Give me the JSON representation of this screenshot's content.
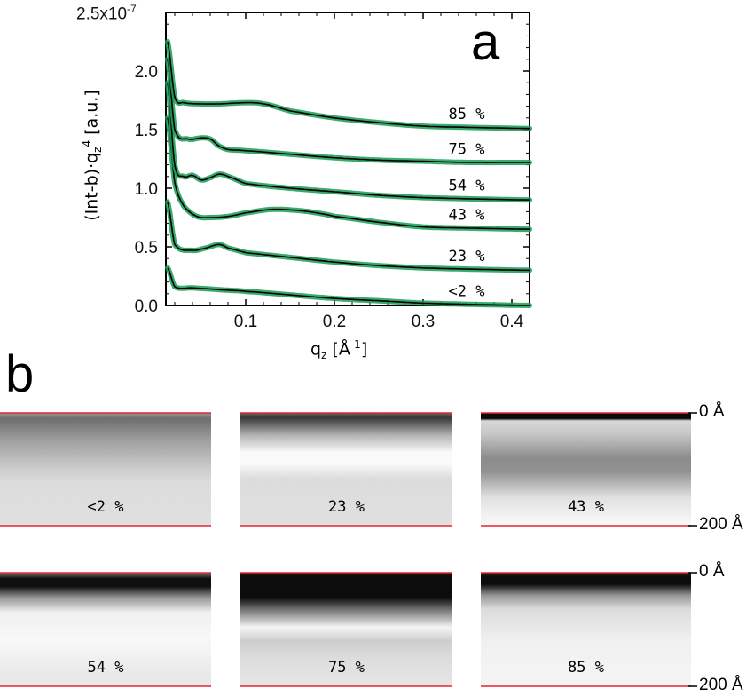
{
  "panel_a_label": "a",
  "panel_b_label": "b",
  "chart_data": {
    "type": "line",
    "xlabel": "q",
    "xlabel_sub": "z",
    "xlabel_unit": "[Å",
    "xlabel_unit_sup": "-1",
    "xlabel_unit_end": "]",
    "ylabel": "(Int-b)·q",
    "ylabel_sub": "z",
    "ylabel_sup": "4",
    "ylabel_unit": "[a.u.]",
    "xlim": [
      0.01,
      0.42
    ],
    "ylim": [
      0.0,
      2.5
    ],
    "y_scale_label": "2.5x10",
    "y_scale_exp": "-7",
    "xticks": [
      0.1,
      0.2,
      0.3,
      0.4
    ],
    "xtick_labels": [
      "0.1",
      "0.2",
      "0.3",
      "0.4"
    ],
    "yticks": [
      0.0,
      0.5,
      1.0,
      1.5,
      2.0
    ],
    "ytick_labels": [
      "0.0",
      "0.5",
      "1.0",
      "1.5",
      "2.0"
    ],
    "data_color": "#1a9a55",
    "fit_color": "#000000",
    "series": [
      {
        "name": "<2 %",
        "x": [
          0.012,
          0.02,
          0.04,
          0.06,
          0.08,
          0.1,
          0.15,
          0.2,
          0.25,
          0.3,
          0.35,
          0.42
        ],
        "y": [
          0.32,
          0.16,
          0.15,
          0.14,
          0.13,
          0.12,
          0.09,
          0.06,
          0.04,
          0.02,
          0.01,
          0.0
        ]
      },
      {
        "name": "23 %",
        "x": [
          0.012,
          0.02,
          0.04,
          0.055,
          0.07,
          0.08,
          0.1,
          0.15,
          0.2,
          0.25,
          0.3,
          0.35,
          0.42
        ],
        "y": [
          0.88,
          0.52,
          0.47,
          0.49,
          0.52,
          0.49,
          0.45,
          0.41,
          0.37,
          0.34,
          0.32,
          0.31,
          0.3
        ]
      },
      {
        "name": "43 %",
        "x": [
          0.012,
          0.02,
          0.03,
          0.045,
          0.06,
          0.08,
          0.1,
          0.13,
          0.16,
          0.18,
          0.2,
          0.25,
          0.3,
          0.35,
          0.42
        ],
        "y": [
          1.6,
          1.05,
          0.85,
          0.76,
          0.75,
          0.76,
          0.79,
          0.82,
          0.81,
          0.79,
          0.76,
          0.71,
          0.67,
          0.66,
          0.65
        ]
      },
      {
        "name": "54 %",
        "x": [
          0.012,
          0.02,
          0.03,
          0.04,
          0.05,
          0.06,
          0.07,
          0.08,
          0.1,
          0.15,
          0.2,
          0.25,
          0.3,
          0.35,
          0.42
        ],
        "y": [
          1.9,
          1.2,
          1.1,
          1.11,
          1.07,
          1.09,
          1.12,
          1.1,
          1.04,
          1.0,
          0.97,
          0.94,
          0.92,
          0.91,
          0.9
        ]
      },
      {
        "name": "75 %",
        "x": [
          0.012,
          0.02,
          0.035,
          0.05,
          0.06,
          0.07,
          0.08,
          0.1,
          0.15,
          0.2,
          0.25,
          0.3,
          0.35,
          0.42
        ],
        "y": [
          2.1,
          1.5,
          1.42,
          1.43,
          1.42,
          1.36,
          1.33,
          1.32,
          1.29,
          1.26,
          1.24,
          1.23,
          1.22,
          1.22
        ]
      },
      {
        "name": "85 %",
        "x": [
          0.012,
          0.02,
          0.03,
          0.05,
          0.07,
          0.1,
          0.12,
          0.15,
          0.2,
          0.25,
          0.3,
          0.35,
          0.42
        ],
        "y": [
          2.25,
          1.78,
          1.73,
          1.72,
          1.72,
          1.73,
          1.72,
          1.66,
          1.6,
          1.56,
          1.53,
          1.52,
          1.51
        ]
      }
    ]
  },
  "profiles": {
    "depth_top_label": "0 Å",
    "depth_bottom_label": "200 Å",
    "boundary_color": "#e8242a",
    "panels": [
      {
        "label": "<2 %",
        "stops": [
          [
            0,
            150
          ],
          [
            0.05,
            110
          ],
          [
            0.25,
            160
          ],
          [
            0.5,
            205
          ],
          [
            0.62,
            220
          ],
          [
            1,
            224
          ]
        ]
      },
      {
        "label": "23 %",
        "stops": [
          [
            0,
            100
          ],
          [
            0.04,
            55
          ],
          [
            0.2,
            180
          ],
          [
            0.35,
            250
          ],
          [
            0.45,
            250
          ],
          [
            0.58,
            220
          ],
          [
            1,
            224
          ]
        ]
      },
      {
        "label": "43 %",
        "stops": [
          [
            0,
            10
          ],
          [
            0.05,
            10
          ],
          [
            0.07,
            215
          ],
          [
            0.18,
            200
          ],
          [
            0.4,
            140
          ],
          [
            0.52,
            145
          ],
          [
            0.75,
            225
          ],
          [
            1,
            250
          ]
        ]
      },
      {
        "label": "54 %",
        "stops": [
          [
            0,
            120
          ],
          [
            0.05,
            15
          ],
          [
            0.12,
            15
          ],
          [
            0.22,
            150
          ],
          [
            0.35,
            240
          ],
          [
            0.6,
            248
          ],
          [
            0.85,
            235
          ],
          [
            1,
            232
          ]
        ]
      },
      {
        "label": "75 %",
        "stops": [
          [
            0,
            20
          ],
          [
            0.05,
            12
          ],
          [
            0.22,
            12
          ],
          [
            0.33,
            120
          ],
          [
            0.48,
            245
          ],
          [
            0.6,
            205
          ],
          [
            0.75,
            220
          ],
          [
            1,
            230
          ]
        ]
      },
      {
        "label": "85 %",
        "stops": [
          [
            0,
            30
          ],
          [
            0.04,
            12
          ],
          [
            0.1,
            12
          ],
          [
            0.2,
            150
          ],
          [
            0.32,
            220
          ],
          [
            0.6,
            240
          ],
          [
            1,
            245
          ]
        ]
      }
    ]
  }
}
